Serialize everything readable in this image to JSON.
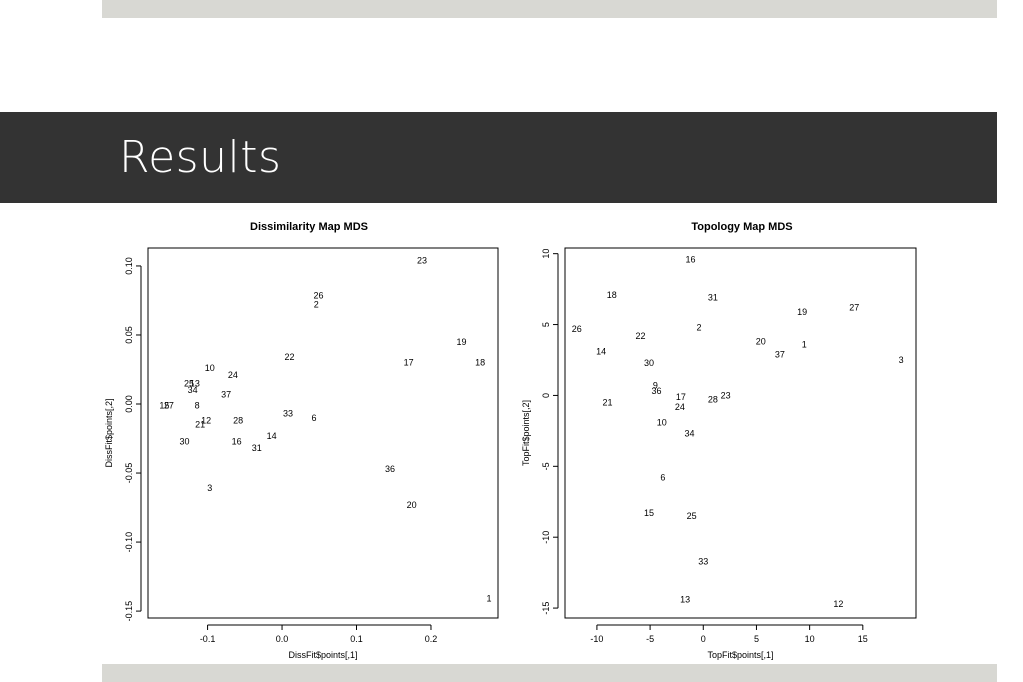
{
  "slide": {
    "title": "Results"
  },
  "chart_data": [
    {
      "type": "scatter",
      "title": "Dissimilarity Map MDS",
      "xlabel": "DissFit$points[,1]",
      "ylabel": "DissFit$points[,2]",
      "xlim": [
        -0.18,
        0.29
      ],
      "ylim": [
        -0.155,
        0.113
      ],
      "xticks": [
        -0.1,
        0.0,
        0.1,
        0.2
      ],
      "xtick_labels": [
        "-0.1",
        "0.0",
        "0.1",
        "0.2"
      ],
      "yticks": [
        -0.15,
        -0.1,
        -0.05,
        0.0,
        0.05,
        0.1
      ],
      "ytick_labels": [
        "-0.15",
        "-0.10",
        "-0.05",
        "0.00",
        "0.05",
        "0.10"
      ],
      "points": [
        {
          "label": "23",
          "x": 0.188,
          "y": 0.104
        },
        {
          "label": "26",
          "x": 0.049,
          "y": 0.0785
        },
        {
          "label": "2",
          "x": 0.046,
          "y": 0.072
        },
        {
          "label": "19",
          "x": 0.241,
          "y": 0.045
        },
        {
          "label": "22",
          "x": 0.01,
          "y": 0.034
        },
        {
          "label": "17",
          "x": 0.17,
          "y": 0.03
        },
        {
          "label": "18",
          "x": 0.266,
          "y": 0.03
        },
        {
          "label": "10",
          "x": -0.097,
          "y": 0.026
        },
        {
          "label": "24",
          "x": -0.066,
          "y": 0.021
        },
        {
          "label": "25",
          "x": -0.125,
          "y": 0.015
        },
        {
          "label": "13",
          "x": -0.117,
          "y": 0.015
        },
        {
          "label": "34",
          "x": -0.12,
          "y": 0.01
        },
        {
          "label": "37",
          "x": -0.075,
          "y": 0.007
        },
        {
          "label": "15",
          "x": -0.158,
          "y": -0.001
        },
        {
          "label": "27",
          "x": -0.152,
          "y": -0.001
        },
        {
          "label": "8",
          "x": -0.114,
          "y": -0.001
        },
        {
          "label": "33",
          "x": 0.008,
          "y": -0.007
        },
        {
          "label": "6",
          "x": 0.043,
          "y": -0.01
        },
        {
          "label": "12",
          "x": -0.102,
          "y": -0.012
        },
        {
          "label": "28",
          "x": -0.059,
          "y": -0.012
        },
        {
          "label": "21",
          "x": -0.11,
          "y": -0.015
        },
        {
          "label": "14",
          "x": -0.014,
          "y": -0.023
        },
        {
          "label": "30",
          "x": -0.131,
          "y": -0.027
        },
        {
          "label": "16",
          "x": -0.061,
          "y": -0.027
        },
        {
          "label": "31",
          "x": -0.034,
          "y": -0.032
        },
        {
          "label": "36",
          "x": 0.145,
          "y": -0.047
        },
        {
          "label": "3",
          "x": -0.097,
          "y": -0.061
        },
        {
          "label": "20",
          "x": 0.174,
          "y": -0.073
        },
        {
          "label": "1",
          "x": 0.278,
          "y": -0.141
        }
      ]
    },
    {
      "type": "scatter",
      "title": "Topology Map MDS",
      "xlabel": "TopFit$points[,1]",
      "ylabel": "TopFit$points[,2]",
      "xlim": [
        -13,
        20
      ],
      "ylim": [
        -15.7,
        10.4
      ],
      "xticks": [
        -10,
        -5,
        0,
        5,
        10,
        15
      ],
      "xtick_labels": [
        "-10",
        "-5",
        "0",
        "5",
        "10",
        "15"
      ],
      "yticks": [
        -15,
        -10,
        -5,
        0,
        5,
        10
      ],
      "ytick_labels": [
        "-15",
        "-10",
        "-5",
        "0",
        "5",
        "10"
      ],
      "points": [
        {
          "label": "16",
          "x": -1.2,
          "y": 9.6
        },
        {
          "label": "18",
          "x": -8.6,
          "y": 7.1
        },
        {
          "label": "31",
          "x": 0.9,
          "y": 6.9
        },
        {
          "label": "27",
          "x": 14.2,
          "y": 6.2
        },
        {
          "label": "19",
          "x": 9.3,
          "y": 5.9
        },
        {
          "label": "26",
          "x": -11.9,
          "y": 4.7
        },
        {
          "label": "2",
          "x": -0.4,
          "y": 4.8
        },
        {
          "label": "22",
          "x": -5.9,
          "y": 4.2
        },
        {
          "label": "20",
          "x": 5.4,
          "y": 3.8
        },
        {
          "label": "1",
          "x": 9.5,
          "y": 3.6
        },
        {
          "label": "14",
          "x": -9.6,
          "y": 3.1
        },
        {
          "label": "37",
          "x": 7.2,
          "y": 2.9
        },
        {
          "label": "3",
          "x": 18.6,
          "y": 2.5
        },
        {
          "label": "30",
          "x": -5.1,
          "y": 2.3
        },
        {
          "label": "9",
          "x": -4.5,
          "y": 0.7
        },
        {
          "label": "36",
          "x": -4.4,
          "y": 0.3
        },
        {
          "label": "23",
          "x": 2.1,
          "y": 0.0
        },
        {
          "label": "17",
          "x": -2.1,
          "y": -0.1
        },
        {
          "label": "28",
          "x": 0.9,
          "y": -0.3
        },
        {
          "label": "21",
          "x": -9.0,
          "y": -0.5
        },
        {
          "label": "24",
          "x": -2.2,
          "y": -0.8
        },
        {
          "label": "10",
          "x": -3.9,
          "y": -1.9
        },
        {
          "label": "34",
          "x": -1.3,
          "y": -2.7
        },
        {
          "label": "6",
          "x": -3.8,
          "y": -5.8
        },
        {
          "label": "15",
          "x": -5.1,
          "y": -8.3
        },
        {
          "label": "25",
          "x": -1.1,
          "y": -8.5
        },
        {
          "label": "33",
          "x": 0.0,
          "y": -11.7
        },
        {
          "label": "13",
          "x": -1.7,
          "y": -14.4
        },
        {
          "label": "12",
          "x": 12.7,
          "y": -14.7
        }
      ]
    }
  ]
}
